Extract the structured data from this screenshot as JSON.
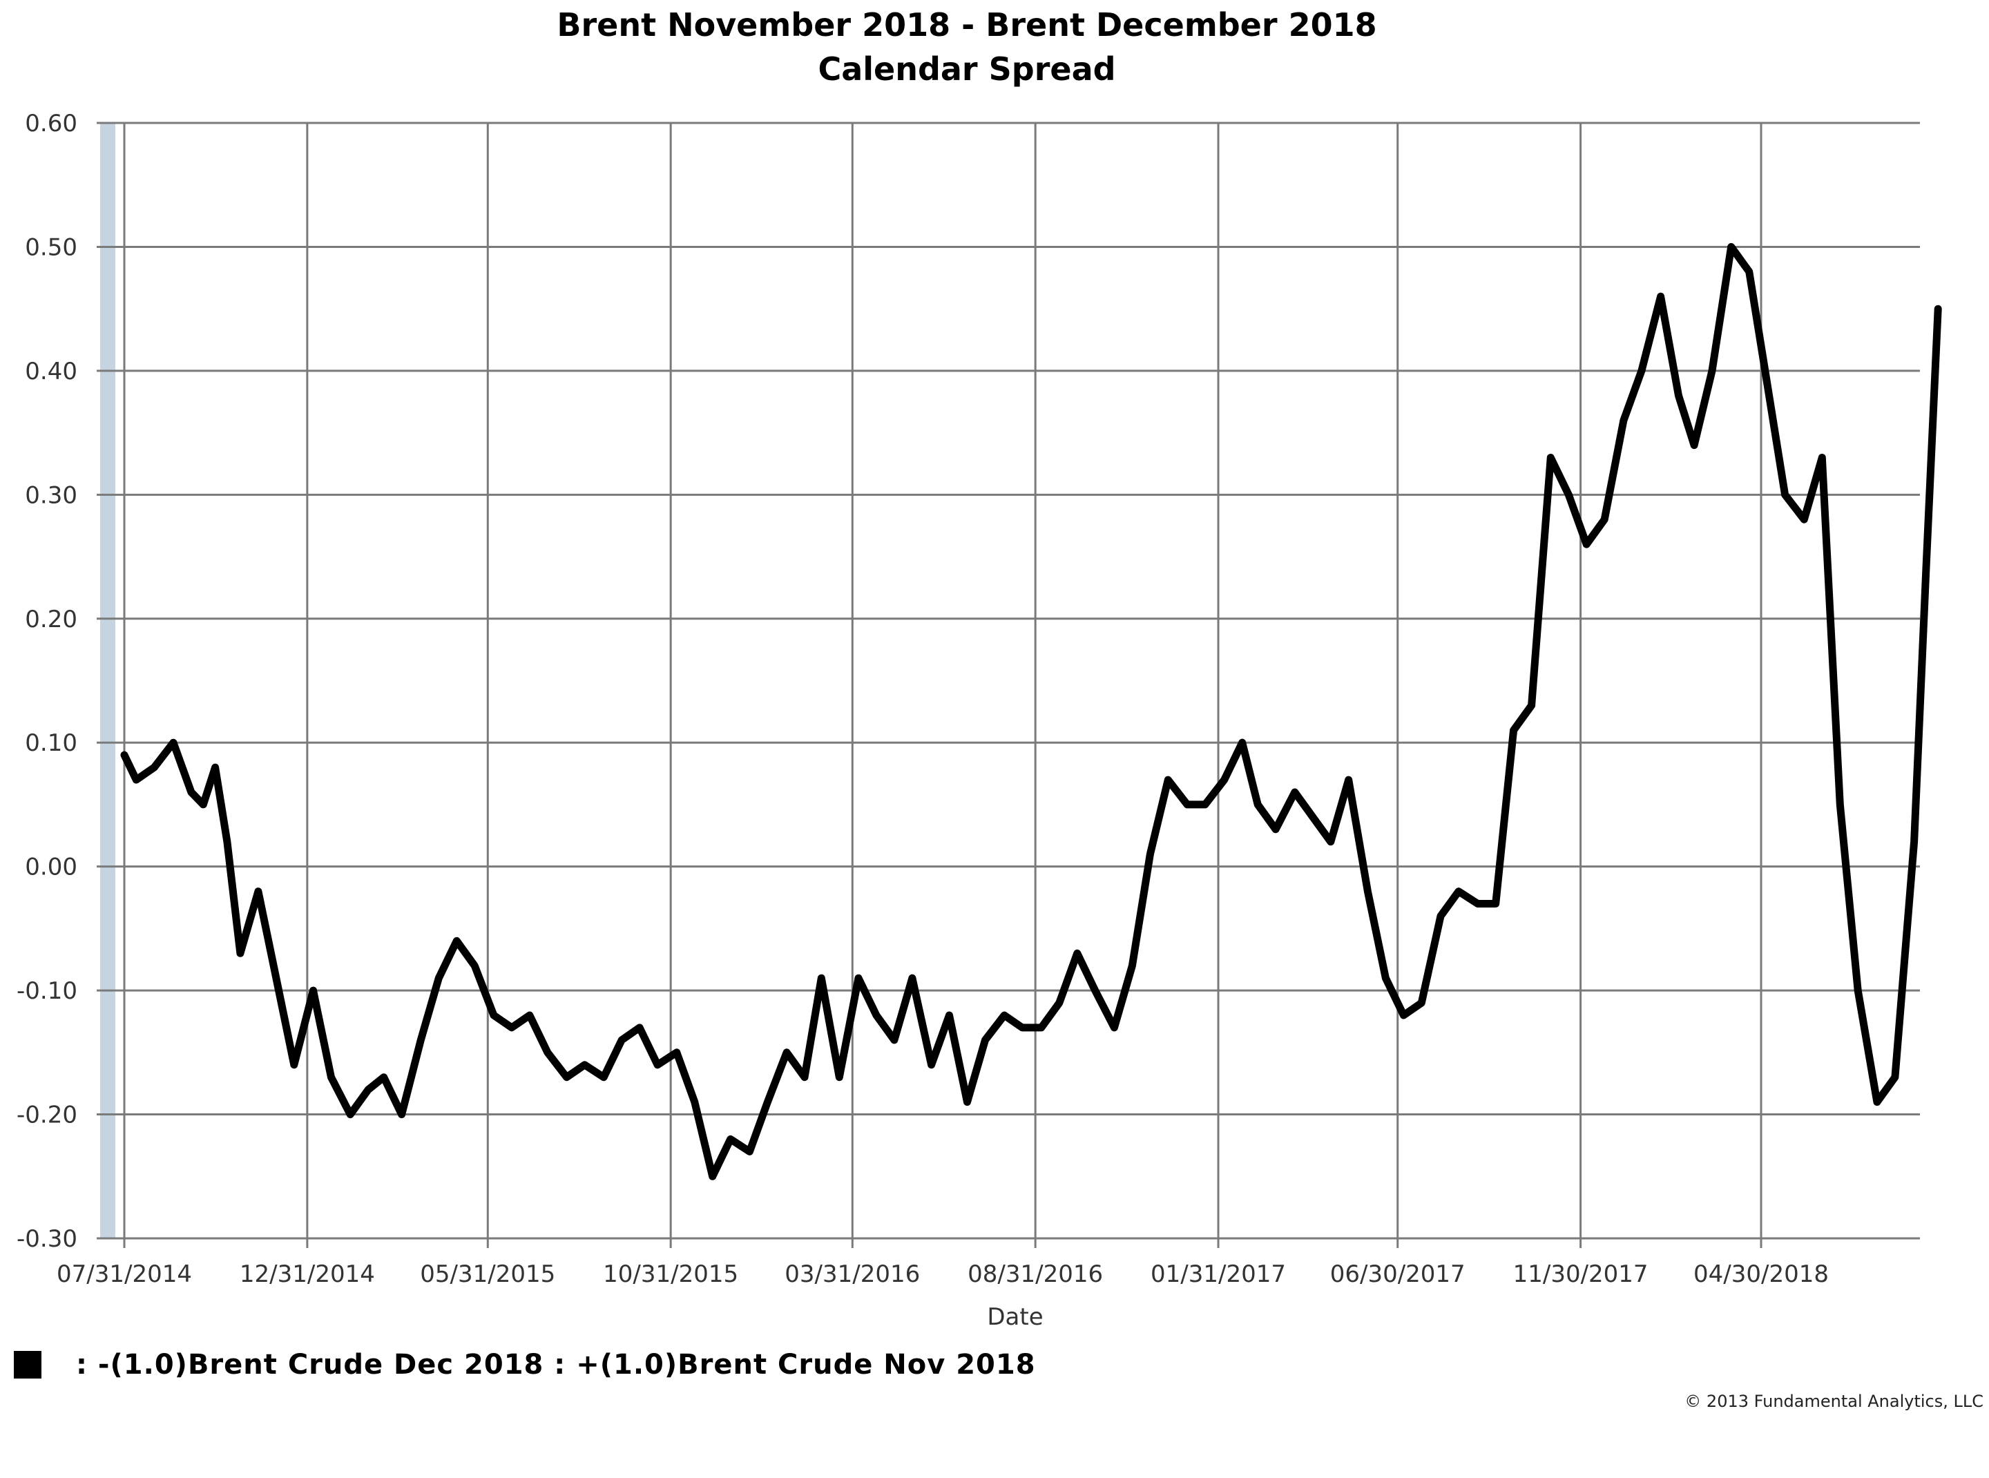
{
  "chart_data": {
    "type": "line",
    "title": "Brent November 2018 - Brent December 2018",
    "subtitle": "Calendar Spread",
    "xlabel": "Date",
    "ylabel": "",
    "ylim": [
      -0.3,
      0.6
    ],
    "y_ticks": [
      "0.60",
      "0.50",
      "0.40",
      "0.30",
      "0.20",
      "0.10",
      "0.00",
      "-0.10",
      "-0.20",
      "-0.30"
    ],
    "x_ticks": [
      "07/31/2014",
      "12/31/2014",
      "05/31/2015",
      "10/31/2015",
      "03/31/2016",
      "08/31/2016",
      "01/31/2017",
      "06/30/2017",
      "11/30/2017",
      "04/30/2018"
    ],
    "grid": true,
    "series": [
      {
        "name": ": -(1.0)Brent Crude Dec 2018 : +(1.0)Brent Crude Nov 2018",
        "color": "#000000",
        "x": [
          "2014-07-31",
          "2014-08-10",
          "2014-08-25",
          "2014-09-10",
          "2014-09-25",
          "2014-10-05",
          "2014-10-15",
          "2014-10-25",
          "2014-11-05",
          "2014-11-20",
          "2014-12-05",
          "2014-12-20",
          "2015-01-05",
          "2015-01-20",
          "2015-02-05",
          "2015-02-20",
          "2015-03-05",
          "2015-03-20",
          "2015-04-05",
          "2015-04-20",
          "2015-05-05",
          "2015-05-20",
          "2015-06-05",
          "2015-06-20",
          "2015-07-05",
          "2015-07-20",
          "2015-08-05",
          "2015-08-20",
          "2015-09-05",
          "2015-09-20",
          "2015-10-05",
          "2015-10-20",
          "2015-11-05",
          "2015-11-20",
          "2015-12-05",
          "2015-12-20",
          "2016-01-05",
          "2016-01-20",
          "2016-02-05",
          "2016-02-20",
          "2016-03-05",
          "2016-03-20",
          "2016-04-05",
          "2016-04-20",
          "2016-05-05",
          "2016-05-20",
          "2016-06-05",
          "2016-06-20",
          "2016-07-05",
          "2016-07-20",
          "2016-08-05",
          "2016-08-20",
          "2016-09-05",
          "2016-09-20",
          "2016-10-05",
          "2016-10-20",
          "2016-11-05",
          "2016-11-20",
          "2016-12-05",
          "2016-12-20",
          "2017-01-05",
          "2017-01-20",
          "2017-02-05",
          "2017-02-20",
          "2017-03-05",
          "2017-03-20",
          "2017-04-05",
          "2017-04-20",
          "2017-05-05",
          "2017-05-20",
          "2017-06-05",
          "2017-06-20",
          "2017-07-05",
          "2017-07-20",
          "2017-08-05",
          "2017-08-20",
          "2017-09-05",
          "2017-09-20",
          "2017-10-05",
          "2017-10-20",
          "2017-11-05",
          "2017-11-20",
          "2017-12-05",
          "2017-12-20",
          "2018-01-05",
          "2018-01-20",
          "2018-02-05",
          "2018-02-20",
          "2018-03-05",
          "2018-03-20",
          "2018-04-05",
          "2018-04-20",
          "2018-05-05",
          "2018-05-20",
          "2018-06-05",
          "2018-06-20",
          "2018-07-05",
          "2018-07-20",
          "2018-08-05",
          "2018-08-20",
          "2018-09-05",
          "2018-09-15",
          "2018-09-25"
        ],
        "y": [
          0.09,
          0.07,
          0.08,
          0.1,
          0.06,
          0.05,
          0.08,
          0.02,
          -0.07,
          -0.02,
          -0.09,
          -0.16,
          -0.1,
          -0.17,
          -0.2,
          -0.18,
          -0.17,
          -0.2,
          -0.14,
          -0.09,
          -0.06,
          -0.08,
          -0.12,
          -0.13,
          -0.12,
          -0.15,
          -0.17,
          -0.16,
          -0.17,
          -0.14,
          -0.13,
          -0.16,
          -0.15,
          -0.19,
          -0.25,
          -0.22,
          -0.23,
          -0.19,
          -0.15,
          -0.17,
          -0.09,
          -0.17,
          -0.09,
          -0.12,
          -0.14,
          -0.09,
          -0.16,
          -0.12,
          -0.19,
          -0.14,
          -0.12,
          -0.13,
          -0.13,
          -0.11,
          -0.07,
          -0.1,
          -0.13,
          -0.08,
          0.01,
          0.07,
          0.05,
          0.05,
          0.07,
          0.1,
          0.05,
          0.03,
          0.06,
          0.04,
          0.02,
          0.07,
          -0.02,
          -0.09,
          -0.12,
          -0.11,
          -0.04,
          -0.02,
          -0.03,
          -0.03,
          0.11,
          0.13,
          0.33,
          0.3,
          0.26,
          0.28,
          0.36,
          0.4,
          0.46,
          0.38,
          0.34,
          0.4,
          0.5,
          0.48,
          0.39,
          0.3,
          0.28,
          0.33,
          0.05,
          -0.1,
          -0.19,
          -0.17,
          0.02,
          0.24,
          0.45
        ]
      }
    ]
  },
  "legend": {
    "label": ": -(1.0)Brent Crude Dec 2018 : +(1.0)Brent Crude Nov 2018"
  },
  "footer": {
    "copyright": "© 2013 Fundamental Analytics, LLC"
  }
}
